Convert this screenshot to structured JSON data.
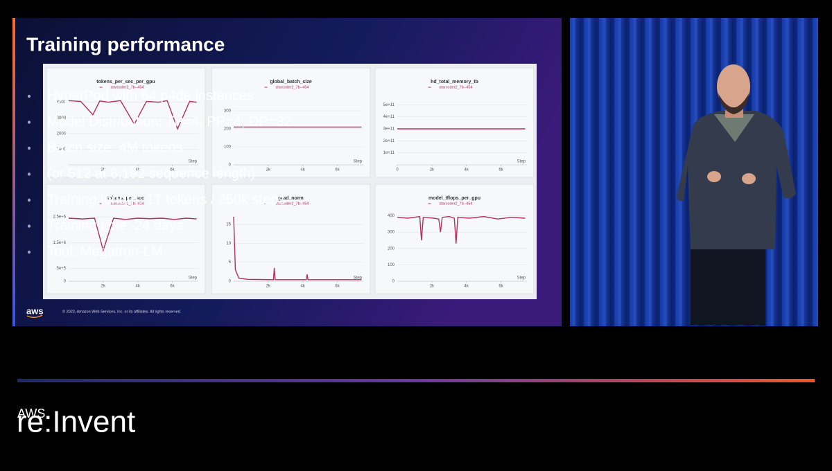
{
  "slide": {
    "title": "Training performance",
    "bullets": [
      "HyperPod with 64 p4de instances",
      "Model Distribution: TP=4, PP=4, DP=32",
      "Batch size: 4M tokens",
      "(or 512 at 8,192 sequence length)",
      "Training length: 1T tokens / 250k steps",
      "Training time: 24 days",
      "Tool: Megatron-LM"
    ],
    "logo": "aws",
    "copyright": "© 2023, Amazon Web Services, Inc. or its affiliates. All rights reserved."
  },
  "panels": [
    {
      "title": "tokens_per_sec_per_gpu",
      "legend": "starcoder2_7b--454",
      "xlabel": "Step",
      "xlim": [
        0,
        7500
      ],
      "xticks": [
        {
          "value": 2000,
          "label": "2k"
        },
        {
          "value": 4000,
          "label": "4k"
        },
        {
          "value": 6000,
          "label": "6k"
        }
      ],
      "ylim": [
        0,
        4600
      ],
      "yticks": [
        1000,
        2000,
        3000,
        4000
      ],
      "x": [
        0,
        700,
        1400,
        1800,
        2300,
        3000,
        3800,
        4500,
        5200,
        5700,
        6300,
        7000,
        7400
      ],
      "values": [
        4100,
        4050,
        3200,
        4080,
        4000,
        4100,
        2600,
        4050,
        4000,
        4100,
        2300,
        4050,
        4000
      ]
    },
    {
      "title": "global_batch_size",
      "legend": "starcoder2_7b--454",
      "xlabel": "Step",
      "xlim": [
        0,
        7500
      ],
      "xticks": [
        {
          "value": 2000,
          "label": "2k"
        },
        {
          "value": 4000,
          "label": "4k"
        },
        {
          "value": 6000,
          "label": "6k"
        }
      ],
      "ylim": [
        0,
        400
      ],
      "yticks": [
        0,
        100,
        200,
        300
      ],
      "x": [
        0,
        7400
      ],
      "values": [
        210,
        210
      ]
    },
    {
      "title": "hd_total_memory_tb",
      "legend": "starcoder2_7b--454",
      "xlabel": "Step",
      "xlim": [
        0,
        7500
      ],
      "xticks": [
        0,
        {
          "value": 2000,
          "label": "2k"
        },
        {
          "value": 4000,
          "label": "4k"
        },
        {
          "value": 6000,
          "label": "6k"
        }
      ],
      "ylim": [
        0,
        600000000000
      ],
      "yticks": [
        {
          "value": 100000000000,
          "label": "1e+11"
        },
        {
          "value": 200000000000,
          "label": "2e+11"
        },
        {
          "value": 300000000000,
          "label": "3e+11"
        },
        {
          "value": 400000000000,
          "label": "4e+11"
        },
        {
          "value": 500000000000,
          "label": "5e+11"
        }
      ],
      "x": [
        0,
        7400
      ],
      "values": [
        300000000000,
        300000000000
      ]
    },
    {
      "title": "tokens_per_sec",
      "legend": "starcoder2_7b--454",
      "xlabel": "Step",
      "xlim": [
        0,
        7500
      ],
      "xticks": [
        {
          "value": 2000,
          "label": "2k"
        },
        {
          "value": 4000,
          "label": "4k"
        },
        {
          "value": 6000,
          "label": "6k"
        }
      ],
      "ylim": [
        0,
        2800000
      ],
      "yticks": [
        0,
        {
          "value": 500000,
          "label": "5e+5"
        },
        {
          "value": 1500000,
          "label": "1.5e+6"
        },
        {
          "value": 2500000,
          "label": "2.5e+6"
        }
      ],
      "x": [
        0,
        800,
        1500,
        2000,
        2600,
        3300,
        4000,
        4700,
        5400,
        6100,
        6800,
        7400
      ],
      "values": [
        2450000,
        2420000,
        2450000,
        1200000,
        2450000,
        2400000,
        2450000,
        2430000,
        2450000,
        2400000,
        2450000,
        2420000
      ]
    },
    {
      "title": "grad_norm",
      "legend": "starcoder2_7b--454",
      "xlabel": "Step",
      "xlim": [
        0,
        7500
      ],
      "xticks": [
        {
          "value": 2000,
          "label": "2k"
        },
        {
          "value": 4000,
          "label": "4k"
        },
        {
          "value": 6000,
          "label": "6k"
        }
      ],
      "ylim": [
        0,
        19
      ],
      "yticks": [
        0,
        5,
        10,
        15
      ],
      "x": [
        0,
        100,
        300,
        800,
        2300,
        2350,
        2400,
        4200,
        4250,
        4300,
        7400
      ],
      "values": [
        17,
        3,
        0.8,
        0.5,
        0.4,
        3.5,
        0.4,
        0.4,
        1.8,
        0.4,
        0.4
      ]
    },
    {
      "title": "model_tflops_per_gpu",
      "legend": "starcoder2_7b--454",
      "xlabel": "Step",
      "xlim": [
        0,
        7500
      ],
      "xticks": [
        {
          "value": 2000,
          "label": "2k"
        },
        {
          "value": 4000,
          "label": "4k"
        },
        {
          "value": 6000,
          "label": "6k"
        }
      ],
      "ylim": [
        0,
        440
      ],
      "yticks": [
        0,
        100,
        200,
        300,
        400
      ],
      "x": [
        0,
        600,
        1300,
        1400,
        1500,
        2100,
        2400,
        2500,
        2600,
        3000,
        3300,
        3400,
        3500,
        4200,
        5000,
        5800,
        6600,
        7400
      ],
      "values": [
        390,
        385,
        395,
        250,
        390,
        385,
        380,
        300,
        390,
        395,
        385,
        230,
        390,
        385,
        395,
        380,
        390,
        385
      ]
    }
  ],
  "branding": {
    "aws": "AWS",
    "event": "re:Invent"
  }
}
